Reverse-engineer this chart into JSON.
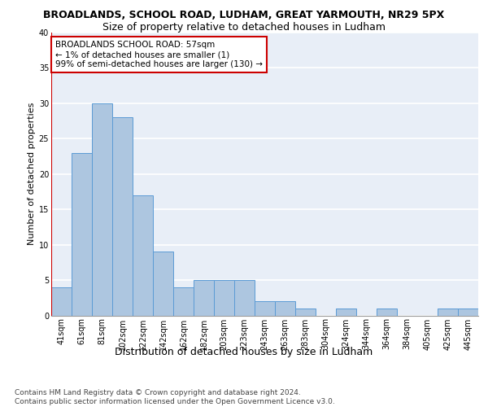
{
  "title1": "BROADLANDS, SCHOOL ROAD, LUDHAM, GREAT YARMOUTH, NR29 5PX",
  "title2": "Size of property relative to detached houses in Ludham",
  "xlabel": "Distribution of detached houses by size in Ludham",
  "ylabel": "Number of detached properties",
  "categories": [
    "41sqm",
    "61sqm",
    "81sqm",
    "102sqm",
    "122sqm",
    "142sqm",
    "162sqm",
    "182sqm",
    "203sqm",
    "223sqm",
    "243sqm",
    "263sqm",
    "283sqm",
    "304sqm",
    "324sqm",
    "344sqm",
    "364sqm",
    "384sqm",
    "405sqm",
    "425sqm",
    "445sqm"
  ],
  "values": [
    4,
    23,
    30,
    28,
    17,
    9,
    4,
    5,
    5,
    5,
    2,
    2,
    1,
    0,
    1,
    0,
    1,
    0,
    0,
    1,
    1
  ],
  "bar_color": "#adc6e0",
  "bar_edge_color": "#5b9bd5",
  "highlight_line_color": "#cc0000",
  "ylim": [
    0,
    40
  ],
  "yticks": [
    0,
    5,
    10,
    15,
    20,
    25,
    30,
    35,
    40
  ],
  "annotation_line1": "BROADLANDS SCHOOL ROAD: 57sqm",
  "annotation_line2": "← 1% of detached houses are smaller (1)",
  "annotation_line3": "99% of semi-detached houses are larger (130) →",
  "annotation_box_color": "#ffffff",
  "annotation_border_color": "#cc0000",
  "footer": "Contains HM Land Registry data © Crown copyright and database right 2024.\nContains public sector information licensed under the Open Government Licence v3.0.",
  "background_color": "#e8eef7",
  "grid_color": "#ffffff",
  "title1_fontsize": 9,
  "title2_fontsize": 9,
  "xlabel_fontsize": 9,
  "ylabel_fontsize": 8,
  "tick_fontsize": 7,
  "annotation_fontsize": 7.5,
  "footer_fontsize": 6.5
}
